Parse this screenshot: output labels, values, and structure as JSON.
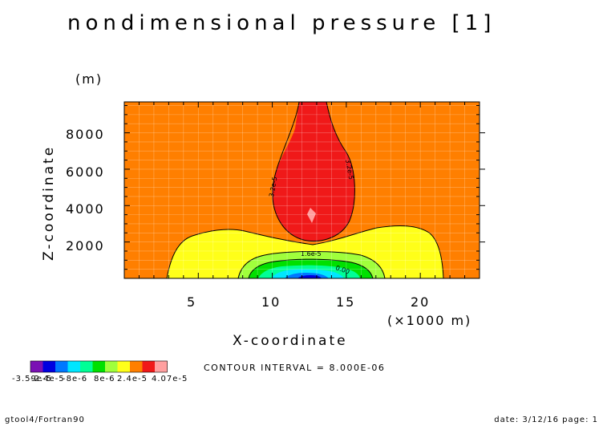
{
  "chart_data": {
    "type": "contour",
    "title": "nondimensional pressure [1]",
    "xlabel": "X-coordinate",
    "x_unit": "(×1000 m)",
    "ylabel": "Z-coordinate",
    "y_unit": "(m)",
    "xlim": [
      0,
      24
    ],
    "ylim": [
      0,
      9700
    ],
    "x_ticks": [
      "5",
      "10",
      "15",
      "20"
    ],
    "y_ticks": [
      "2000",
      "4000",
      "6000",
      "8000"
    ],
    "contour_labels": [
      "3.2e-5",
      "3.2e-5",
      "1.6e-5",
      "0.00"
    ],
    "contour_interval_text": "CONTOUR INTERVAL = 8.000E-06",
    "colorbar": {
      "min_label": "-3.59e-5",
      "tick_labels": [
        "-2.4e-5",
        "-8e-6",
        "8e-6",
        "2.4e-5"
      ],
      "max_label": "4.07e-5",
      "colors": [
        "#7a10b4",
        "#0000e0",
        "#0078ff",
        "#00e6ff",
        "#00ff96",
        "#00e000",
        "#a0ff3c",
        "#ffff19",
        "#ff7f00",
        "#f01919",
        "#ffa0a0"
      ]
    },
    "grid": true,
    "field_colors": {
      "background": "#ff7f00",
      "high": "#f01919",
      "peak": "#ffa0a0",
      "low_1": "#ffff19",
      "low_2": "#a0ff3c",
      "low_3": "#00e000",
      "low_4": "#00ff96",
      "low_5": "#00e6ff",
      "low_6": "#0078ff",
      "low_7": "#0000e0"
    }
  },
  "footer": {
    "left": "gtool4/Fortran90",
    "right": "date: 3/12/16 page: 1"
  }
}
